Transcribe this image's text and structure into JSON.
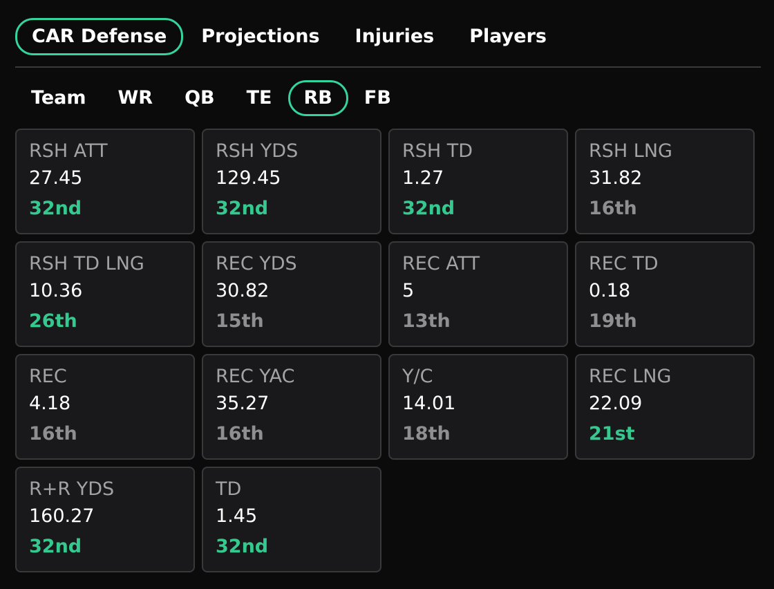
{
  "main_tabs": [
    {
      "label": "CAR Defense",
      "active": true
    },
    {
      "label": "Projections",
      "active": false
    },
    {
      "label": "Injuries",
      "active": false
    },
    {
      "label": "Players",
      "active": false
    }
  ],
  "position_tabs": [
    {
      "label": "Team",
      "active": false
    },
    {
      "label": "WR",
      "active": false
    },
    {
      "label": "QB",
      "active": false
    },
    {
      "label": "TE",
      "active": false
    },
    {
      "label": "RB",
      "active": true
    },
    {
      "label": "FB",
      "active": false
    }
  ],
  "colors": {
    "accent": "#35d3a0",
    "rank_highlight": "#35c98f",
    "rank_neutral": "#8e8e93",
    "card_bg": "#19191b",
    "page_bg": "#0b0b0b"
  },
  "stats": [
    {
      "label": "RSH ATT",
      "value": "27.45",
      "rank": "32nd",
      "highlight": true
    },
    {
      "label": "RSH YDS",
      "value": "129.45",
      "rank": "32nd",
      "highlight": true
    },
    {
      "label": "RSH TD",
      "value": "1.27",
      "rank": "32nd",
      "highlight": true
    },
    {
      "label": "RSH LNG",
      "value": "31.82",
      "rank": "16th",
      "highlight": false
    },
    {
      "label": "RSH TD LNG",
      "value": "10.36",
      "rank": "26th",
      "highlight": true
    },
    {
      "label": "REC YDS",
      "value": "30.82",
      "rank": "15th",
      "highlight": false
    },
    {
      "label": "REC ATT",
      "value": "5",
      "rank": "13th",
      "highlight": false
    },
    {
      "label": "REC TD",
      "value": "0.18",
      "rank": "19th",
      "highlight": false
    },
    {
      "label": "REC",
      "value": "4.18",
      "rank": "16th",
      "highlight": false
    },
    {
      "label": "REC YAC",
      "value": "35.27",
      "rank": "16th",
      "highlight": false
    },
    {
      "label": "Y/C",
      "value": "14.01",
      "rank": "18th",
      "highlight": false
    },
    {
      "label": "REC LNG",
      "value": "22.09",
      "rank": "21st",
      "highlight": true
    },
    {
      "label": "R+R YDS",
      "value": "160.27",
      "rank": "32nd",
      "highlight": true
    },
    {
      "label": "TD",
      "value": "1.45",
      "rank": "32nd",
      "highlight": true
    }
  ]
}
